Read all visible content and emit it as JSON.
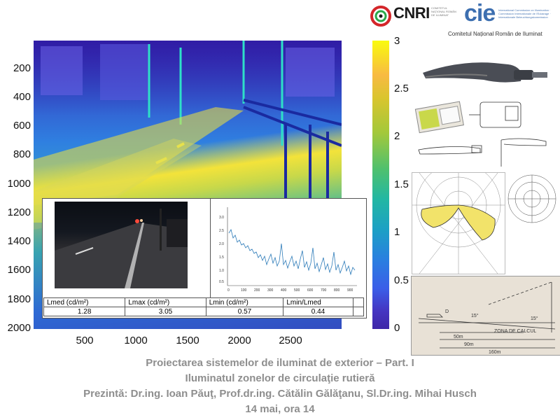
{
  "logos": {
    "cnri": "CNRI",
    "cnri_sub": "COMITETUL NAŢIONAL ROMÂN DE ILUMINAT",
    "cie": "cie",
    "cie_sub": "International Commission on Illumination · Commission Internationale de l'Eclairage · Internationale Beleuchtungskommission",
    "committee": "Comitetul Național Român de Iluminat"
  },
  "luminance_map": {
    "y_ticks": [
      "200",
      "400",
      "600",
      "800",
      "1000",
      "1200",
      "1400",
      "1600",
      "1800",
      "2000"
    ],
    "x_ticks": [
      "500",
      "1000",
      "1500",
      "2000",
      "2500"
    ],
    "colorbar_ticks": [
      "3",
      "2.5",
      "2",
      "1.5",
      "1",
      "0.5",
      "0"
    ]
  },
  "inset": {
    "mini_chart_y_ticks": [
      "3.0",
      "2.5",
      "2.0",
      "1.5",
      "1.0",
      "0.5"
    ],
    "mini_chart_x_ticks": [
      "0",
      "100",
      "200",
      "300",
      "400",
      "500",
      "600",
      "700",
      "800",
      "900"
    ],
    "table": {
      "headers": [
        "Lmed (cd/m²)",
        "Lmax (cd/m²)",
        "Lmin (cd/m²)",
        "Lmin/Lmed",
        ""
      ],
      "values": [
        "1.28",
        "3.05",
        "0.57",
        "0.44",
        ""
      ]
    }
  },
  "geometry_sketch": {
    "labels": [
      "15°",
      "15°",
      "50m",
      "90m",
      "160m",
      "ZONA DE CALCUL",
      "D"
    ]
  },
  "titles": {
    "line1": "Proiectarea sistemelor de iluminat de exterior – Part. I",
    "line2": "Iluminatul zonelor de circulaţie rutieră",
    "line3": "Prezintă: Dr.ing. Ioan Păuţ, Prof.dr.ing. Cătălin Gălăţanu, Sl.Dr.ing. Mihai Husch",
    "line4": "14 mai, ora 14"
  },
  "colors": {
    "title_gray": "#8e8e8e",
    "cie_blue": "#3d6fb0",
    "viridis_top": "#f9fb0e",
    "viridis_bottom": "#3e26a8"
  }
}
